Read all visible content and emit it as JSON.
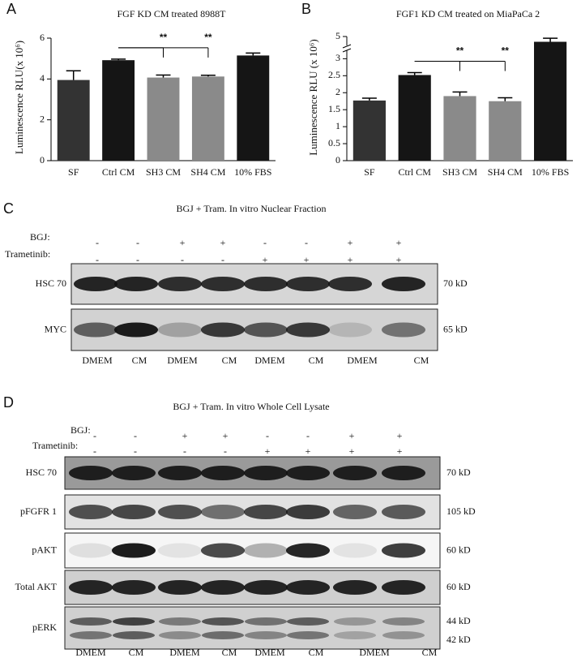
{
  "chart_data": [
    {
      "type": "bar",
      "letter": "A",
      "title": "FGF KD CM treated 8988T",
      "ylabel": "Luminescence RLU(x 10⁶)",
      "categories": [
        "SF",
        "Ctrl CM",
        "SH3 CM",
        "SH4 CM",
        "10% FBS"
      ],
      "values": [
        3.95,
        4.92,
        4.07,
        4.12,
        5.15
      ],
      "errors": [
        0.45,
        0.05,
        0.12,
        0.06,
        0.12
      ],
      "colors": [
        "#333333",
        "#151515",
        "#8a8a8a",
        "#8a8a8a",
        "#151515"
      ],
      "ylim": [
        0,
        6
      ],
      "yticks": [
        0,
        2,
        4,
        6
      ],
      "significance": [
        {
          "from": "Ctrl CM",
          "to": "SH3 CM",
          "label": "**"
        },
        {
          "from": "Ctrl CM",
          "to": "SH4 CM",
          "label": "**"
        }
      ]
    },
    {
      "type": "bar",
      "letter": "B",
      "title": "FGF1 KD CM treated on MiaPaCa 2",
      "ylabel": "Luminescence RLU (x 10⁶)",
      "categories": [
        "SF",
        "Ctrl CM",
        "SH3 CM",
        "SH4 CM",
        "10% FBS"
      ],
      "values": [
        1.77,
        2.52,
        1.9,
        1.75,
        4.85
      ],
      "errors": [
        0.07,
        0.07,
        0.12,
        0.1,
        0.1
      ],
      "colors": [
        "#333333",
        "#151515",
        "#8a8a8a",
        "#8a8a8a",
        "#151515"
      ],
      "ylim": [
        0,
        5
      ],
      "ybreak": [
        3.2,
        4.7
      ],
      "yticks": [
        0,
        0.5,
        1,
        1.5,
        2,
        2.5,
        3,
        5
      ],
      "significance": [
        {
          "from": "Ctrl CM",
          "to": "SH3 CM",
          "label": "**"
        },
        {
          "from": "Ctrl CM",
          "to": "SH4 CM",
          "label": "**"
        }
      ]
    }
  ],
  "panels": [
    {
      "letter": "C",
      "title": "BGJ + Tram. In vitro Nuclear Fraction",
      "treatments": [
        {
          "label": "BGJ:",
          "signs": [
            "-",
            "-",
            "+",
            "+",
            "-",
            "-",
            "+",
            "+"
          ]
        },
        {
          "label": "Trametinib:",
          "signs": [
            "-",
            "-",
            "-",
            "-",
            "+",
            "+",
            "+",
            "+"
          ]
        }
      ],
      "blots": [
        {
          "label": "HSC 70",
          "sizes": [
            "70 kD"
          ]
        },
        {
          "label": "MYC",
          "sizes": [
            "65 kD"
          ]
        }
      ],
      "lanes": [
        "DMEM",
        "CM",
        "DMEM",
        "CM",
        "DMEM",
        "CM",
        "DMEM",
        "CM"
      ]
    },
    {
      "letter": "D",
      "title": "BGJ + Tram. In vitro Whole Cell Lysate",
      "treatments": [
        {
          "label": "BGJ:",
          "signs": [
            "-",
            "-",
            "+",
            "+",
            "-",
            "-",
            "+",
            "+"
          ]
        },
        {
          "label": "Trametinib:",
          "signs": [
            "-",
            "-",
            "-",
            "-",
            "+",
            "+",
            "+",
            "+"
          ]
        }
      ],
      "blots": [
        {
          "label": "HSC 70",
          "sizes": [
            "70 kD"
          ]
        },
        {
          "label": "pFGFR 1",
          "sizes": [
            "105 kD"
          ]
        },
        {
          "label": "pAKT",
          "sizes": [
            "60 kD"
          ]
        },
        {
          "label": "Total AKT",
          "sizes": [
            "60 kD"
          ]
        },
        {
          "label": "pERK",
          "sizes": [
            "44 kD",
            "42 kD"
          ]
        }
      ],
      "lanes": [
        "DMEM",
        "CM",
        "DMEM",
        "CM",
        "DMEM",
        "CM",
        "DMEM",
        "CM"
      ]
    }
  ]
}
